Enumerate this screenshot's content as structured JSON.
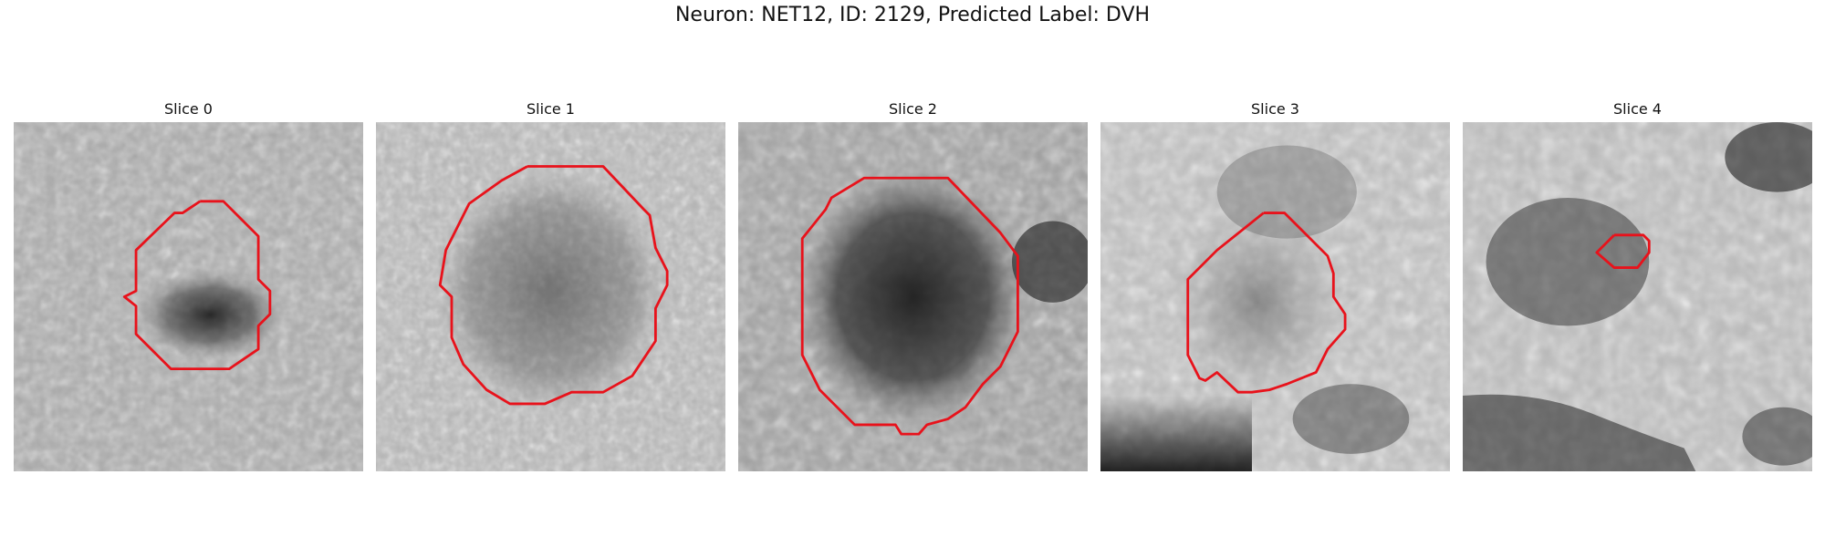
{
  "figure": {
    "title": "Neuron: NET12, ID: 2129, Predicted Label: DVH"
  },
  "panels": [
    {
      "title": "Slice 0",
      "contour_color": "#e8121b"
    },
    {
      "title": "Slice 1",
      "contour_color": "#e8121b"
    },
    {
      "title": "Slice 2",
      "contour_color": "#e8121b"
    },
    {
      "title": "Slice 3",
      "contour_color": "#e8121b"
    },
    {
      "title": "Slice 4",
      "contour_color": "#e8121b"
    }
  ]
}
